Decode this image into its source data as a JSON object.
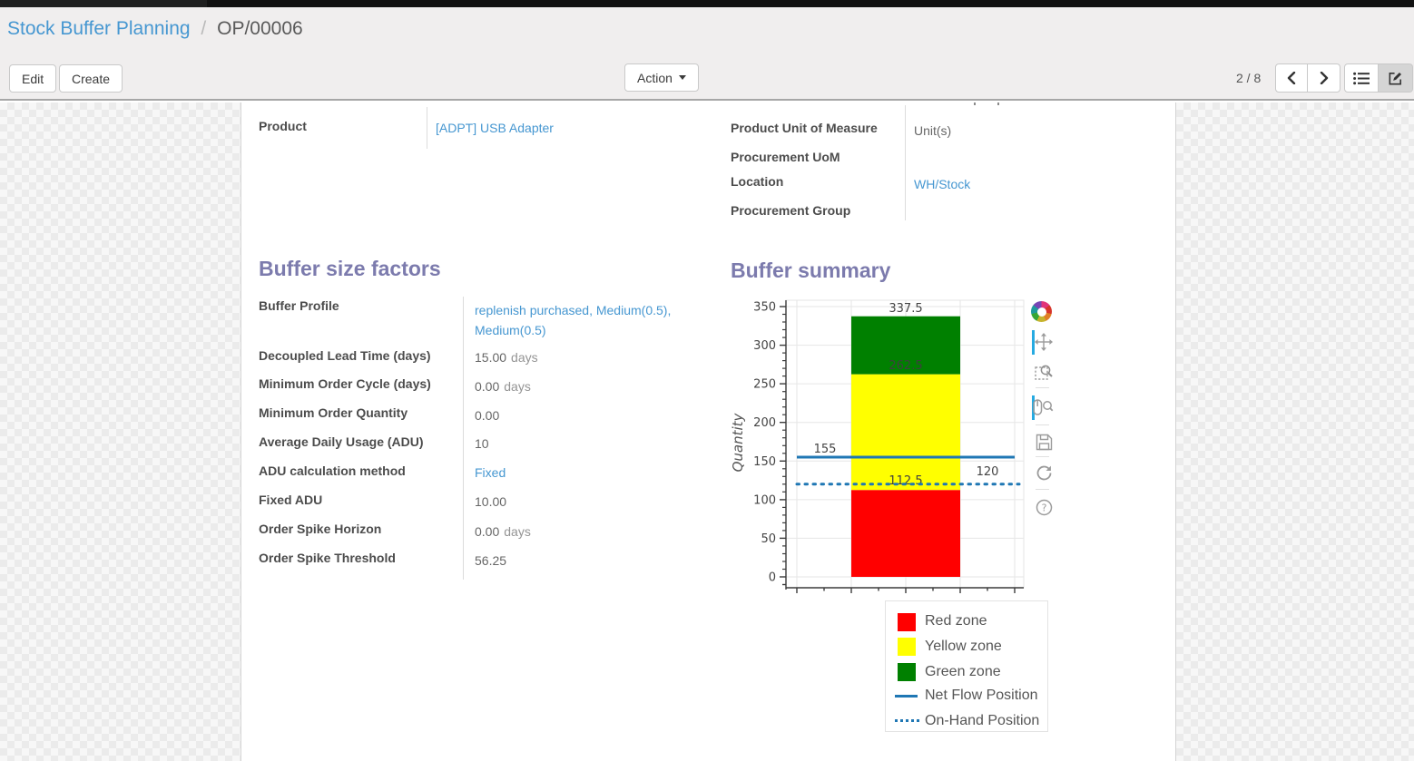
{
  "breadcrumb": {
    "parent": "Stock Buffer Planning",
    "separator": "/",
    "current": "OP/00006"
  },
  "control_panel": {
    "edit_label": "Edit",
    "create_label": "Create",
    "action_label": "Action",
    "pager_value": "2 / 8",
    "view_switcher": [
      "list",
      "form"
    ],
    "active_view": "form"
  },
  "sheet": {
    "product_group": {
      "fields": [
        {
          "label": "Product",
          "value": "[ADPT] USB Adapter",
          "link": true
        }
      ]
    },
    "uom_group": {
      "fields": [
        {
          "label": "Product Unit of Measure",
          "value": "Unit(s)",
          "link": false
        },
        {
          "label": "Procurement UoM",
          "value": "",
          "link": false
        },
        {
          "label": "Location",
          "value": "WH/Stock",
          "link": true
        },
        {
          "label": "Procurement Group",
          "value": "",
          "link": false
        }
      ]
    },
    "buffer_factors": {
      "heading": "Buffer size factors",
      "fields": [
        {
          "label": "Buffer Profile",
          "value": "replenish purchased, Medium(0.5), Medium(0.5)",
          "link": true
        },
        {
          "label": "Decoupled Lead Time (days)",
          "value": "15.00",
          "suffix": "days"
        },
        {
          "label": "Minimum Order Cycle (days)",
          "value": "0.00",
          "suffix": "days"
        },
        {
          "label": "Minimum Order Quantity",
          "value": "0.00"
        },
        {
          "label": "Average Daily Usage (ADU)",
          "value": "10"
        },
        {
          "label": "ADU calculation method",
          "value": "Fixed",
          "link": true
        },
        {
          "label": "Fixed ADU",
          "value": "10.00"
        },
        {
          "label": "Order Spike Horizon",
          "value": "0.00",
          "suffix": "days"
        },
        {
          "label": "Order Spike Threshold",
          "value": "56.25"
        }
      ]
    },
    "buffer_summary": {
      "heading": "Buffer summary"
    }
  },
  "chart_data": {
    "type": "bar",
    "stacked": true,
    "ylabel": "Quantity",
    "ylim": [
      0,
      350
    ],
    "ytick_labels": [
      "0",
      "50",
      "100",
      "150",
      "200",
      "250",
      "300",
      "350"
    ],
    "grid": true,
    "zones": [
      {
        "label": "Red zone",
        "from": 0,
        "to": 112.5,
        "color": "#ff0000"
      },
      {
        "label": "Yellow zone",
        "from": 112.5,
        "to": 262.5,
        "color": "#ffff00"
      },
      {
        "label": "Green zone",
        "from": 262.5,
        "to": 337.5,
        "color": "#008000"
      }
    ],
    "lines": [
      {
        "label": "Net Flow Position",
        "value": 155,
        "style": "solid",
        "color": "#1f77b4"
      },
      {
        "label": "On-Hand Position",
        "value": 120,
        "style": "dotted",
        "color": "#1f77b4"
      }
    ],
    "value_labels": {
      "green_top": "337.5",
      "yellow_top": "262.5",
      "net_flow": "155",
      "red_top": "112.5",
      "on_hand": "120"
    },
    "legend": [
      "Red zone",
      "Yellow zone",
      "Green zone",
      "Net Flow Position",
      "On-Hand Position"
    ],
    "legend_position": "below-right"
  },
  "chart_toolbar": {
    "icons": [
      "bokeh-logo",
      "pan",
      "box-zoom",
      "wheel-zoom",
      "save",
      "reset",
      "help"
    ],
    "active": [
      "pan",
      "wheel-zoom"
    ]
  },
  "colors": {
    "heading": "#7c7bad",
    "link": "#4697d1",
    "label": "#4c4c4c",
    "red_zone": "#ff0000",
    "yellow_zone": "#ffff00",
    "green_zone": "#008000",
    "flow_line": "#1f77b4",
    "toolbar_active": "#26aae1"
  }
}
